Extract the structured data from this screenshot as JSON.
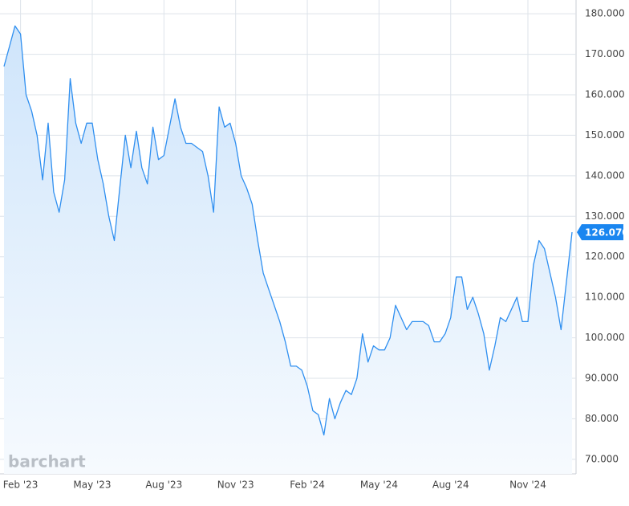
{
  "chart_data": {
    "type": "line",
    "categories": [
      null,
      null,
      null,
      "Feb '23",
      null,
      null,
      null,
      null,
      null,
      null,
      null,
      null,
      null,
      null,
      null,
      null,
      "May '23",
      null,
      null,
      null,
      null,
      null,
      null,
      null,
      null,
      null,
      null,
      null,
      null,
      "Aug '23",
      null,
      null,
      null,
      null,
      null,
      null,
      null,
      null,
      null,
      null,
      null,
      null,
      "Nov '23",
      null,
      null,
      null,
      null,
      null,
      null,
      null,
      null,
      null,
      null,
      null,
      null,
      "Feb '24",
      null,
      null,
      null,
      null,
      null,
      null,
      null,
      null,
      null,
      null,
      null,
      null,
      "May '24",
      null,
      null,
      null,
      null,
      null,
      null,
      null,
      null,
      null,
      null,
      null,
      null,
      "Aug '24",
      null,
      null,
      null,
      null,
      null,
      null,
      null,
      null,
      null,
      null,
      null,
      null,
      null,
      "Nov '24",
      null,
      null,
      null,
      null,
      null,
      null,
      null,
      null
    ],
    "values": [
      167,
      172,
      177,
      175,
      160,
      156,
      150,
      139,
      153,
      136,
      131,
      139,
      164,
      153,
      148,
      153,
      153,
      144,
      138,
      130,
      124,
      137,
      150,
      142,
      151,
      142,
      138,
      152,
      144,
      145,
      152,
      159,
      152,
      148,
      148,
      147,
      146,
      140,
      131,
      157,
      152,
      153,
      148,
      140,
      137,
      133,
      124,
      116,
      112,
      108,
      104,
      99,
      93,
      93,
      92,
      88,
      82,
      81,
      76,
      85,
      80,
      84,
      87,
      86,
      90,
      101,
      94,
      98,
      97,
      97,
      100,
      108,
      105,
      102,
      104,
      104,
      104,
      103,
      99,
      99,
      101,
      105,
      115,
      115,
      107,
      110,
      106,
      101,
      92,
      98,
      105,
      104,
      107,
      110,
      104,
      104,
      118,
      124,
      122,
      116,
      110,
      102,
      114,
      126.07
    ],
    "value_labels": [
      null,
      null,
      null,
      null,
      null,
      null,
      null,
      null,
      null,
      null,
      null,
      null,
      null,
      null,
      null,
      null,
      null,
      null,
      null,
      null,
      null,
      null,
      null,
      null,
      null,
      null,
      null,
      null,
      null,
      null,
      null,
      null,
      null,
      null,
      null,
      null,
      null,
      null,
      null,
      null,
      null,
      null,
      null,
      null,
      null,
      null,
      null,
      null,
      null,
      null,
      null,
      null,
      null,
      null,
      null,
      null,
      null,
      null,
      null,
      null,
      null,
      null,
      null,
      null,
      null,
      null,
      null,
      null,
      null,
      null,
      null,
      null,
      null,
      null,
      null,
      null,
      null,
      null,
      null,
      null,
      null,
      null,
      null,
      null,
      null,
      null,
      null,
      null,
      null,
      null,
      null,
      null,
      null,
      null,
      null,
      null,
      null,
      null,
      null,
      null,
      null,
      null,
      null,
      "126.070"
    ],
    "color": "#2f8ff0",
    "ylim": [
      66.4,
      183.4
    ],
    "yticks": [
      {
        "value": 70,
        "label": "70.000"
      },
      {
        "value": 80,
        "label": "80.000"
      },
      {
        "value": 90,
        "label": "90.000"
      },
      {
        "value": 100,
        "label": "100.000"
      },
      {
        "value": 110,
        "label": "110.000"
      },
      {
        "value": 120,
        "label": "120.000"
      },
      {
        "value": 130,
        "label": "130.000"
      },
      {
        "value": 140,
        "label": "140.000"
      },
      {
        "value": 150,
        "label": "150.000"
      },
      {
        "value": 160,
        "label": "160.000"
      },
      {
        "value": 170,
        "label": "170.000"
      },
      {
        "value": 180,
        "label": "180.000"
      }
    ],
    "grid": true,
    "watermark": "barchart"
  }
}
